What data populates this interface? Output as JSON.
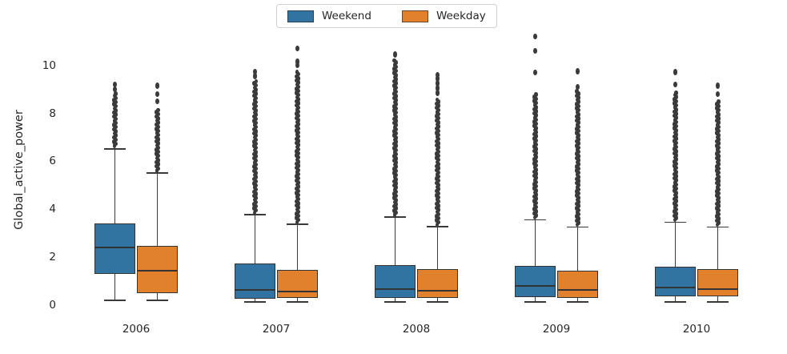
{
  "figure": {
    "background": "#ffffff",
    "text_color": "#262626",
    "line_color": "#3a3a3a"
  },
  "legend": {
    "position": "upper center",
    "items": [
      {
        "label": "Weekend",
        "color": "#3274a1"
      },
      {
        "label": "Weekday",
        "color": "#e1812c"
      }
    ]
  },
  "chart_data": {
    "type": "boxplot",
    "title": "",
    "xlabel": "",
    "ylabel": "Global_active_power",
    "categories": [
      "2006",
      "2007",
      "2008",
      "2009",
      "2010"
    ],
    "yticks": [
      0,
      2,
      4,
      6,
      8,
      10
    ],
    "ylim": [
      -0.5,
      12.5
    ],
    "grid": false,
    "legend_position": "upper center",
    "series": [
      {
        "name": "Weekend",
        "color": "#3274a1",
        "boxes": [
          {
            "category": "2006",
            "whislo": 0.21,
            "q1": 1.3,
            "med": 2.41,
            "q3": 3.41,
            "whishi": 6.52,
            "outlier_dense": [
              6.65,
              8.85
            ],
            "outlier_dots": [
              9.0,
              9.2
            ]
          },
          {
            "category": "2007",
            "whislo": 0.13,
            "q1": 0.27,
            "med": 0.63,
            "q3": 1.73,
            "whishi": 3.77,
            "outlier_dense": [
              3.87,
              9.35
            ],
            "outlier_dots": [
              9.55,
              9.74
            ]
          },
          {
            "category": "2008",
            "whislo": 0.13,
            "q1": 0.3,
            "med": 0.67,
            "q3": 1.67,
            "whishi": 3.68,
            "outlier_dense": [
              3.78,
              10.25
            ],
            "outlier_dots": [
              10.45
            ]
          },
          {
            "category": "2009",
            "whislo": 0.13,
            "q1": 0.34,
            "med": 0.79,
            "q3": 1.65,
            "whishi": 3.56,
            "outlier_dense": [
              3.66,
              8.85
            ],
            "outlier_dots": [
              9.7,
              10.6,
              11.2
            ]
          },
          {
            "category": "2010",
            "whislo": 0.13,
            "q1": 0.37,
            "med": 0.72,
            "q3": 1.61,
            "whishi": 3.46,
            "outlier_dense": [
              3.56,
              8.9
            ],
            "outlier_dots": [
              9.2,
              9.72
            ]
          }
        ]
      },
      {
        "name": "Weekday",
        "color": "#e1812c",
        "boxes": [
          {
            "category": "2006",
            "whislo": 0.21,
            "q1": 0.5,
            "med": 1.44,
            "q3": 2.47,
            "whishi": 5.51,
            "outlier_dense": [
              5.62,
              8.2
            ],
            "outlier_dots": [
              8.5,
              8.8,
              9.15
            ]
          },
          {
            "category": "2007",
            "whislo": 0.13,
            "q1": 0.3,
            "med": 0.57,
            "q3": 1.47,
            "whishi": 3.37,
            "outlier_dense": [
              3.47,
              9.75
            ],
            "outlier_dots": [
              10.0,
              10.15,
              10.7
            ]
          },
          {
            "category": "2008",
            "whislo": 0.13,
            "q1": 0.3,
            "med": 0.6,
            "q3": 1.5,
            "whishi": 3.27,
            "outlier_dense": [
              3.37,
              8.6
            ],
            "outlier_dots": [
              8.85,
              9.05,
              9.25,
              9.45,
              9.6
            ]
          },
          {
            "category": "2009",
            "whislo": 0.13,
            "q1": 0.31,
            "med": 0.64,
            "q3": 1.45,
            "whishi": 3.26,
            "outlier_dense": [
              3.36,
              8.95
            ],
            "outlier_dots": [
              9.1,
              9.75
            ]
          },
          {
            "category": "2010",
            "whislo": 0.13,
            "q1": 0.37,
            "med": 0.67,
            "q3": 1.5,
            "whishi": 3.26,
            "outlier_dense": [
              3.36,
              8.5
            ],
            "outlier_dots": [
              8.8,
              9.15
            ]
          }
        ]
      }
    ]
  }
}
